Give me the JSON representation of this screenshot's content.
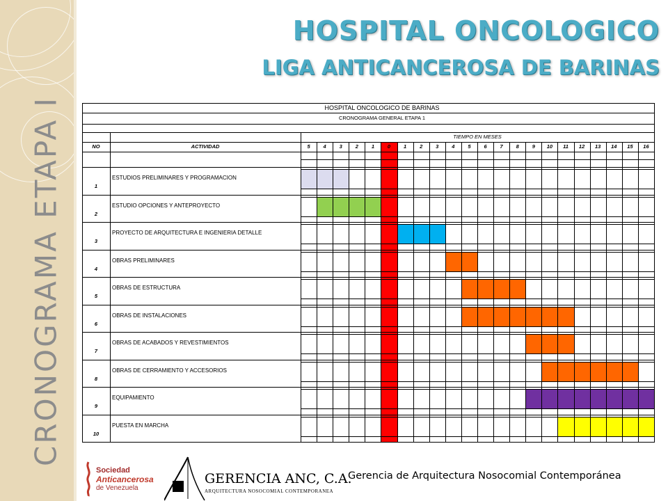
{
  "slide": {
    "vertical_title": "CRONOGRAMA  ETAPA I",
    "title_line1": "HOSPITAL ONCOLOGICO",
    "title_line2": "LIGA ANTICANCEROSA DE BARINAS",
    "footer": "Gerencia de Arquitectura Nosocomial Contemporánea"
  },
  "logos": {
    "sociedad": [
      "Sociedad",
      "Anticancerosa",
      "de Venezuela"
    ],
    "gerencia": [
      "GERENCIA ANC, C.A.",
      "ARQUITECTURA NOSOCOMIAL CONTEMPORANEA"
    ]
  },
  "gantt": {
    "title": "HOSPITAL ONCOLOGICO DE BARINAS",
    "subtitle": "CRONOGRAMA GENERAL ETAPA 1",
    "time_header": "TIEMPO EN MESES",
    "col_no": "NO",
    "col_activity": "ACTIVIDAD",
    "months": [
      "5",
      "4",
      "3",
      "2",
      "1",
      "0",
      "1",
      "2",
      "3",
      "4",
      "5",
      "6",
      "7",
      "8",
      "9",
      "10",
      "11",
      "12",
      "13",
      "14",
      "15",
      "16"
    ],
    "zero_column": 5,
    "colors": {
      "zero": "#ff0000",
      "lavender": "#dcdcef",
      "green": "#92d050",
      "blue": "#00b0f0",
      "orange": "#ff6600",
      "purple": "#7030a0",
      "yellow": "#ffff00"
    },
    "activities": [
      {
        "no": "1",
        "label": "ESTUDIOS PRELIMINARES Y PROGRAMACION",
        "start": 0,
        "end": 2,
        "color": "lavender"
      },
      {
        "no": "2",
        "label": "ESTUDIO OPCIONES Y ANTEPROYECTO",
        "start": 1,
        "end": 4,
        "color": "green"
      },
      {
        "no": "3",
        "label": "PROYECTO DE ARQUITECTURA E INGENIERIA DETALLE",
        "start": 6,
        "end": 8,
        "color": "blue"
      },
      {
        "no": "4",
        "label": "OBRAS PRELIMINARES",
        "start": 9,
        "end": 10,
        "color": "orange"
      },
      {
        "no": "5",
        "label": "OBRAS DE ESTRUCTURA",
        "start": 10,
        "end": 13,
        "color": "orange"
      },
      {
        "no": "6",
        "label": "OBRAS DE INSTALACIONES",
        "start": 10,
        "end": 16,
        "color": "orange"
      },
      {
        "no": "7",
        "label": "OBRAS DE ACABADOS Y REVESTIMIENTOS",
        "start": 14,
        "end": 16,
        "color": "orange"
      },
      {
        "no": "8",
        "label": "OBRAS DE CERRAMIENTO Y ACCESORIOS",
        "start": 15,
        "end": 20,
        "color": "orange"
      },
      {
        "no": "9",
        "label": "EQUIPAMIENTO",
        "start": 14,
        "end": 21,
        "color": "purple"
      },
      {
        "no": "10",
        "label": "PUESTA EN MARCHA",
        "start": 16,
        "end": 21,
        "color": "yellow"
      }
    ]
  }
}
